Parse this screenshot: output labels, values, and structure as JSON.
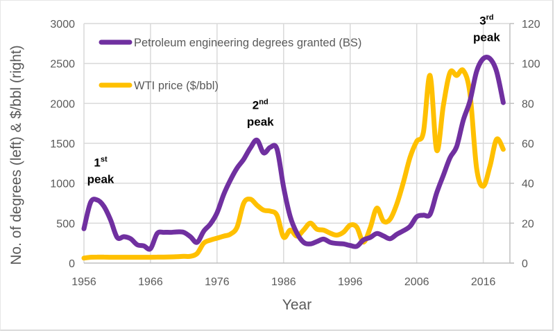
{
  "chart_data": {
    "type": "line",
    "title": "",
    "xlabel": "Year",
    "ylabel": "No. of degrees (left) & $/bbl (right)",
    "xlim": [
      1956,
      2020
    ],
    "ylim_left": [
      0,
      3000
    ],
    "ylim_right": [
      0,
      120
    ],
    "grid": true,
    "legend_position": "top-left",
    "x_ticks": [
      "1956",
      "1966",
      "1976",
      "1986",
      "1996",
      "2006",
      "2016"
    ],
    "y_ticks_left": [
      "0",
      "500",
      "1000",
      "1500",
      "2000",
      "2500",
      "3000"
    ],
    "y_ticks_right": [
      "0",
      "20",
      "40",
      "60",
      "80",
      "100",
      "120"
    ],
    "x": [
      1956,
      1957,
      1958,
      1959,
      1960,
      1961,
      1962,
      1963,
      1964,
      1965,
      1966,
      1967,
      1968,
      1969,
      1970,
      1971,
      1972,
      1973,
      1974,
      1975,
      1976,
      1977,
      1978,
      1979,
      1980,
      1981,
      1982,
      1983,
      1984,
      1985,
      1986,
      1987,
      1988,
      1989,
      1990,
      1991,
      1992,
      1993,
      1994,
      1995,
      1996,
      1997,
      1998,
      1999,
      2000,
      2001,
      2002,
      2003,
      2004,
      2005,
      2006,
      2007,
      2008,
      2009,
      2010,
      2011,
      2012,
      2013,
      2014,
      2015,
      2016,
      2017,
      2018,
      2019
    ],
    "series": [
      {
        "name": "Petroleum engineering degrees granted (BS)",
        "axis": "left",
        "color": "#7030a0",
        "values": [
          430,
          760,
          790,
          710,
          540,
          320,
          330,
          305,
          230,
          215,
          180,
          370,
          385,
          385,
          390,
          385,
          330,
          260,
          400,
          490,
          630,
          860,
          1040,
          1190,
          1300,
          1440,
          1540,
          1380,
          1450,
          1430,
          950,
          580,
          375,
          260,
          240,
          270,
          300,
          260,
          245,
          240,
          220,
          210,
          290,
          320,
          370,
          340,
          305,
          360,
          405,
          460,
          580,
          600,
          610,
          880,
          1100,
          1320,
          1460,
          1790,
          2030,
          2400,
          2560,
          2560,
          2400,
          2010
        ]
      },
      {
        "name": "WTI price ($/bbl)",
        "axis": "right",
        "color": "#ffc000",
        "values": [
          2.5,
          2.9,
          3.0,
          3.0,
          2.9,
          2.9,
          2.9,
          2.9,
          2.9,
          2.9,
          2.9,
          3.0,
          3.0,
          3.1,
          3.2,
          3.4,
          3.4,
          4.8,
          10.0,
          11.5,
          12.5,
          13.5,
          14.5,
          18.0,
          30.0,
          32.0,
          29.0,
          26.5,
          26.0,
          24.0,
          13.0,
          16.5,
          13.5,
          16.5,
          20.0,
          17.0,
          16.5,
          15.0,
          14.0,
          15.5,
          19.0,
          18.0,
          10.5,
          17.5,
          27.5,
          21.0,
          22.0,
          29.5,
          40.5,
          53.0,
          61.0,
          65.5,
          94.0,
          56.5,
          79.0,
          95.5,
          94.0,
          96.5,
          85.0,
          47.5,
          38.5,
          48.5,
          62.0,
          57.0
        ]
      }
    ],
    "annotations": [
      {
        "num": "1",
        "sup": "st",
        "word": "peak",
        "year": 1958.5,
        "value_left": 1000
      },
      {
        "num": "2",
        "sup": "nd",
        "word": "peak",
        "year": 1982.5,
        "value_left": 1720
      },
      {
        "num": "3",
        "sup": "rd",
        "word": "peak",
        "year": 2016.5,
        "value_left": 2780
      }
    ]
  }
}
